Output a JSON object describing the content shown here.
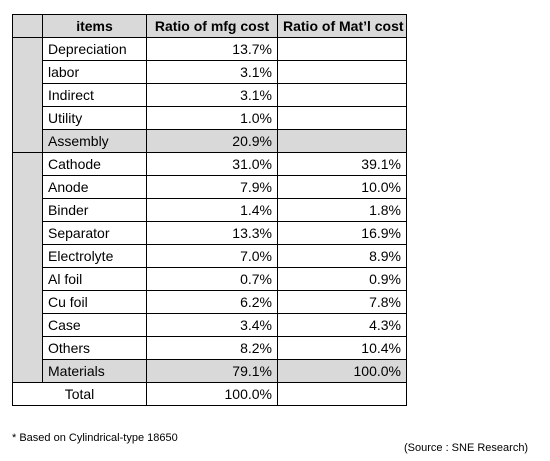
{
  "table": {
    "headers": [
      "items",
      "Ratio of mfg cost",
      "Ratio of Mat’l cost"
    ],
    "groups": [
      {
        "rows": [
          {
            "item": "Depreciation",
            "mfg": "13.7%",
            "mat": ""
          },
          {
            "item": "labor",
            "mfg": "3.1%",
            "mat": ""
          },
          {
            "item": "Indirect",
            "mfg": "3.1%",
            "mat": ""
          },
          {
            "item": "Utility",
            "mfg": "1.0%",
            "mat": ""
          }
        ],
        "subtotal": {
          "item": "Assembly",
          "mfg": "20.9%",
          "mat": ""
        }
      },
      {
        "rows": [
          {
            "item": "Cathode",
            "mfg": "31.0%",
            "mat": "39.1%"
          },
          {
            "item": "Anode",
            "mfg": "7.9%",
            "mat": "10.0%"
          },
          {
            "item": "Binder",
            "mfg": "1.4%",
            "mat": "1.8%"
          },
          {
            "item": "Separator",
            "mfg": "13.3%",
            "mat": "16.9%"
          },
          {
            "item": "Electrolyte",
            "mfg": "7.0%",
            "mat": "8.9%"
          },
          {
            "item": "Al foil",
            "mfg": "0.7%",
            "mat": "0.9%"
          },
          {
            "item": "Cu foil",
            "mfg": "6.2%",
            "mat": "7.8%"
          },
          {
            "item": "Case",
            "mfg": "3.4%",
            "mat": "4.3%"
          },
          {
            "item": "Others",
            "mfg": "8.2%",
            "mat": "10.4%"
          }
        ],
        "subtotal": {
          "item": "Materials",
          "mfg": "79.1%",
          "mat": "100.0%"
        }
      }
    ],
    "total": {
      "item": "Total",
      "mfg": "100.0%",
      "mat": ""
    }
  },
  "footnote": "* Based on  Cylindrical-type 18650",
  "source": "(Source : SNE Research)",
  "colors": {
    "header_bg": "#d9d9d9",
    "subtotal_bg": "#d9d9d9",
    "border": "#000000"
  }
}
